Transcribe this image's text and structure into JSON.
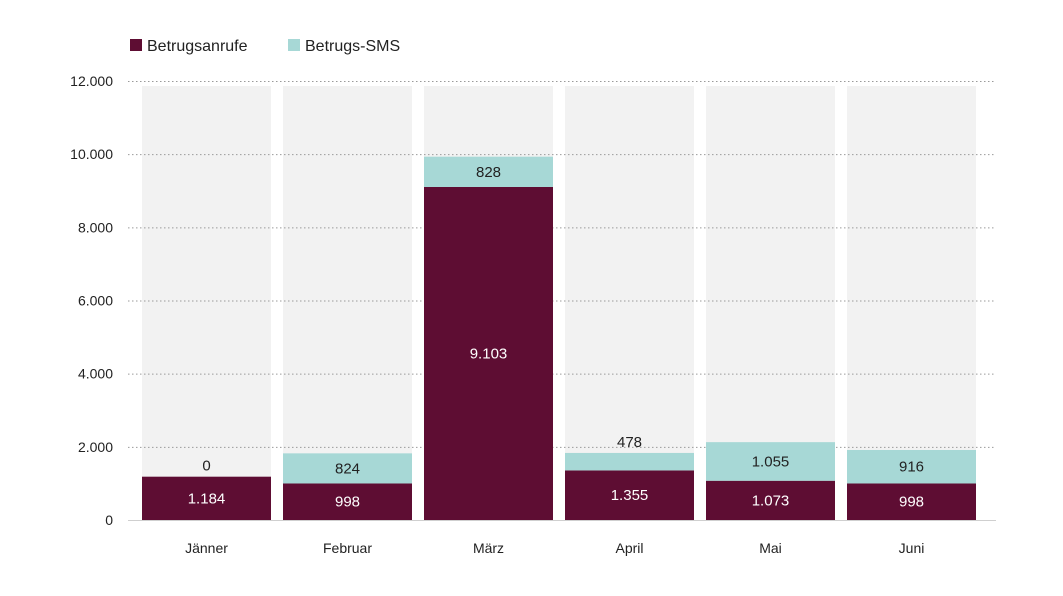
{
  "chart_data": {
    "type": "bar",
    "stacked": true,
    "title": "",
    "xlabel": "",
    "ylabel": "",
    "ylim": [
      0,
      12000
    ],
    "grid": true,
    "legend_position": "top-left",
    "categories": [
      "Jänner",
      "Februar",
      "März",
      "April",
      "Mai",
      "Juni"
    ],
    "y_ticks": [
      {
        "value": 0,
        "label": "0"
      },
      {
        "value": 2000,
        "label": "2.000"
      },
      {
        "value": 4000,
        "label": "4.000"
      },
      {
        "value": 6000,
        "label": "6.000"
      },
      {
        "value": 8000,
        "label": "8.000"
      },
      {
        "value": 10000,
        "label": "10.000"
      },
      {
        "value": 12000,
        "label": "12.000"
      }
    ],
    "series": [
      {
        "name": "Betrugsanrufe",
        "color": "#5e0d33",
        "label_color": "#ffffff",
        "values": [
          1184,
          998,
          9103,
          1355,
          1073,
          998
        ],
        "labels": [
          "1.184",
          "998",
          "9.103",
          "1.355",
          "1.073",
          "998"
        ]
      },
      {
        "name": "Betrugs-SMS",
        "color": "#a7d8d6",
        "label_color": "#222222",
        "values": [
          0,
          824,
          828,
          478,
          1055,
          916
        ],
        "labels": [
          "0",
          "824",
          "828",
          "478",
          "1.055",
          "916"
        ]
      }
    ],
    "background_column_color": "#f2f2f2",
    "grid_color": "#9a9a9a",
    "text_color": "#222222"
  }
}
